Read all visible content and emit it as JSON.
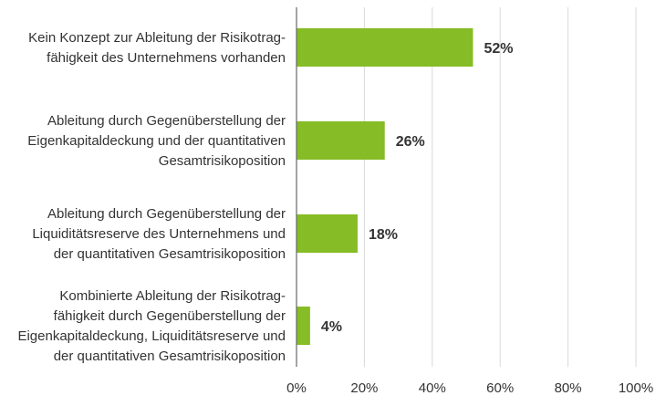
{
  "chart_data": {
    "type": "bar",
    "orientation": "horizontal",
    "categories": [
      [
        "Kein Konzept zur Ableitung der Risikotrag-",
        "fähigkeit des Unternehmens vorhanden"
      ],
      [
        "Ableitung durch Gegenüberstellung der",
        "Eigenkapitaldeckung und der quantitativen",
        "Gesamtrisikoposition"
      ],
      [
        "Ableitung durch Gegenüberstellung der",
        "Liquiditätsreserve des Unternehmens und",
        "der quantitativen Gesamtrisikoposition"
      ],
      [
        "Kombinierte Ableitung der Risikotrag-",
        "fähigkeit durch Gegenüberstellung der",
        "Eigenkapitaldeckung, Liquiditätsreserve und",
        "der quantitativen Gesamtrisikoposition"
      ]
    ],
    "values": [
      52,
      26,
      18,
      4
    ],
    "value_labels": [
      "52%",
      "26%",
      "18%",
      "4%"
    ],
    "xlim": [
      0,
      100
    ],
    "xticks": [
      0,
      20,
      40,
      60,
      80,
      100
    ],
    "xtick_labels": [
      "0%",
      "20%",
      "40%",
      "60%",
      "80%",
      "100%"
    ],
    "grid": true,
    "title": "",
    "xlabel": "",
    "ylabel": "",
    "colors": {
      "bar": "#86bc25",
      "grid": "#d9d9d9",
      "axis": "#666666",
      "text": "#333333"
    }
  }
}
